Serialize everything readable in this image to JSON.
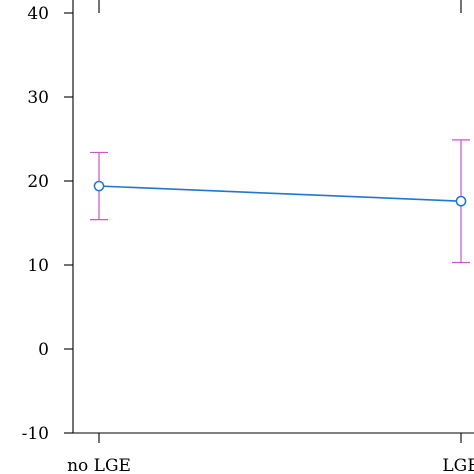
{
  "chart_data": {
    "type": "line",
    "title": "",
    "xlabel": "",
    "ylabel": "",
    "categories": [
      "no LGE",
      "LGE"
    ],
    "ylim": [
      -10,
      40
    ],
    "yticks": [
      -10,
      0,
      10,
      20,
      30,
      40
    ],
    "grid": false,
    "series": [
      {
        "values": [
          19.4,
          17.6
        ],
        "error_low": [
          15.4,
          10.3
        ],
        "error_high": [
          23.4,
          24.9
        ],
        "line_color": "#1f77d4",
        "error_color": "#cc55cc"
      }
    ]
  }
}
